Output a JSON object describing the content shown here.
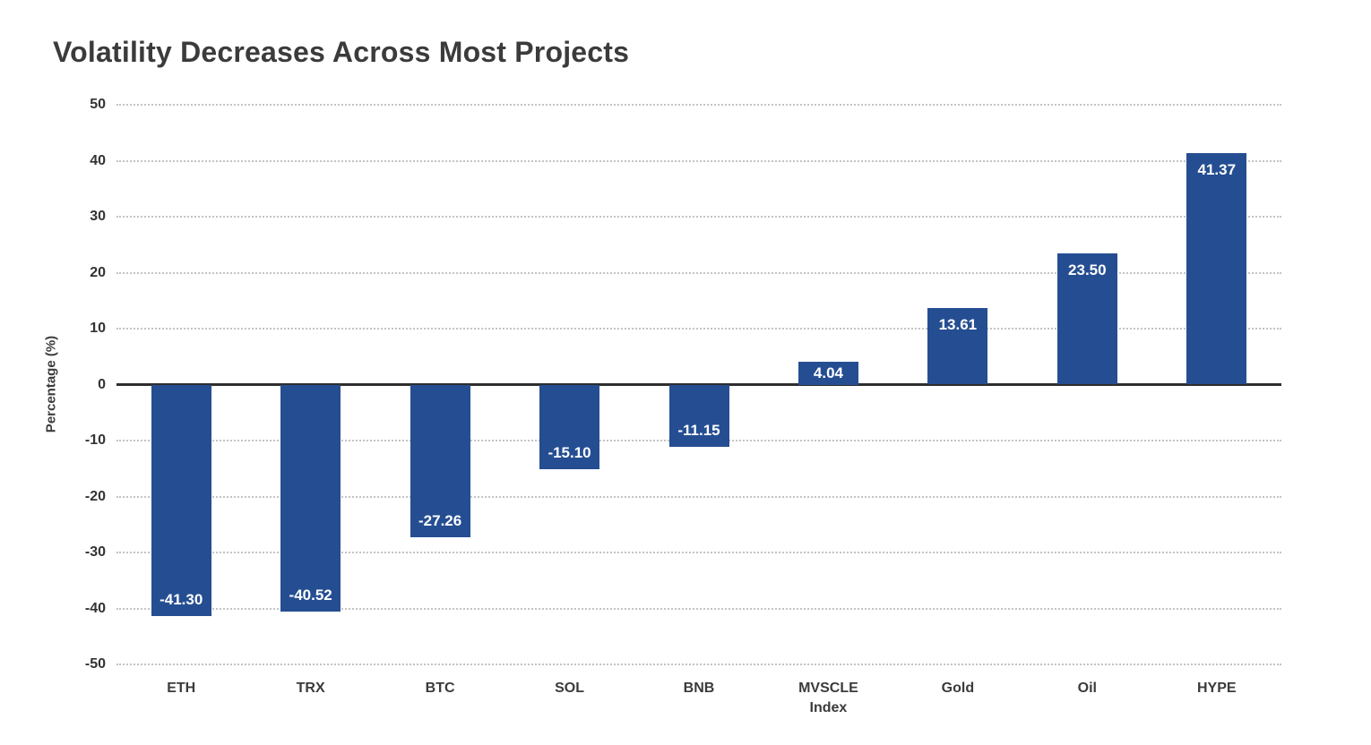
{
  "page": {
    "title": "Volatility Decreases Across Most Projects"
  },
  "chart_data": {
    "type": "bar",
    "title": "Volatility Decreases Across Most Projects",
    "categories": [
      "ETH",
      "TRX",
      "BTC",
      "SOL",
      "BNB",
      "MVSCLE Index",
      "Gold",
      "Oil",
      "HYPE"
    ],
    "values": [
      -41.3,
      -40.52,
      -27.26,
      -15.1,
      -11.15,
      4.04,
      13.61,
      23.5,
      41.37
    ],
    "value_labels": [
      "-41.30",
      "-40.52",
      "-27.26",
      "-15.10",
      "-11.15",
      "4.04",
      "13.61",
      "23.50",
      "41.37"
    ],
    "xlabel": "",
    "ylabel": "Percentage (%)",
    "ylim": [
      -50,
      50
    ],
    "yticks": [
      50,
      40,
      30,
      20,
      10,
      0,
      -10,
      -20,
      -30,
      -40,
      -50
    ],
    "grid": "horizontal-dotted",
    "legend_position": "none",
    "bar_color": "#254e92",
    "value_label_color": "#ffffff",
    "axis_line_color": "#2e2e2e",
    "text_color": "#3b3b3b",
    "gridline_color": "#c3c3c3",
    "background_color": "#ffffff"
  }
}
